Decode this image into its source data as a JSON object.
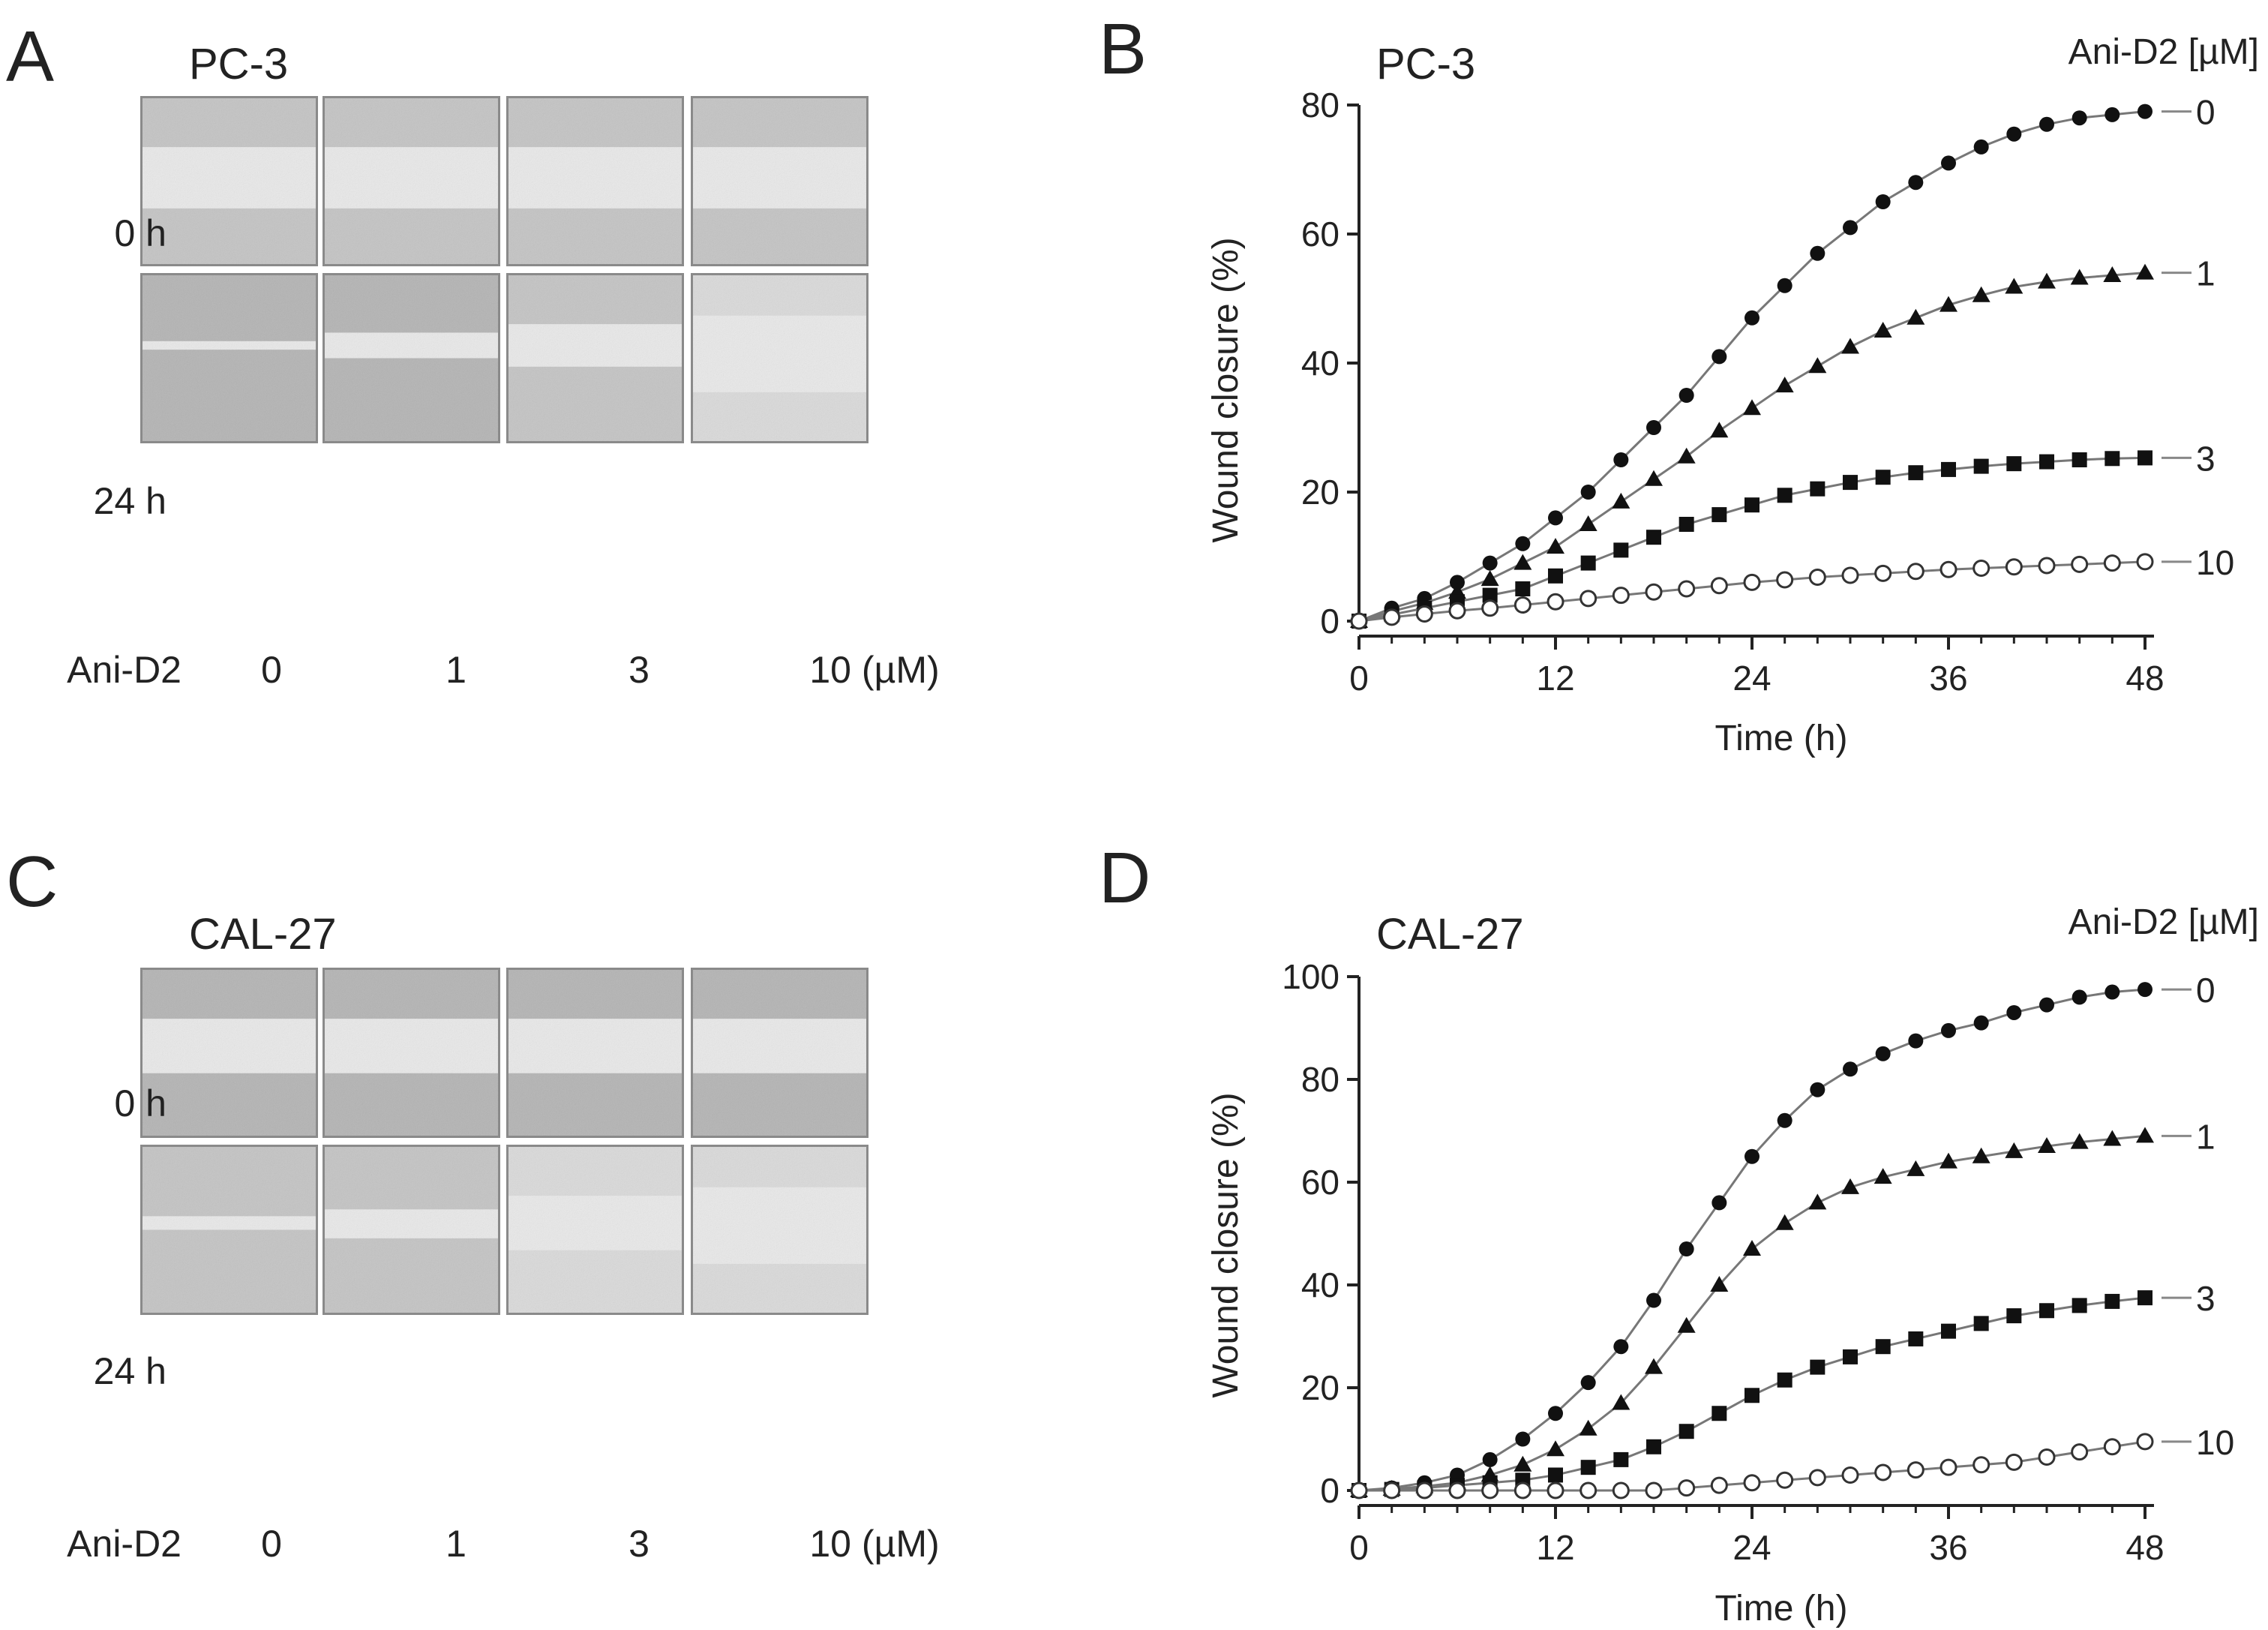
{
  "panels": {
    "A": {
      "letter": "A",
      "cell_line": "PC-3",
      "rows": [
        "0 h",
        "24 h"
      ],
      "treatment_label": "Ani-D2",
      "columns": [
        "0",
        "1",
        "3",
        "10 (µM)"
      ]
    },
    "C": {
      "letter": "C",
      "cell_line": "CAL-27",
      "rows": [
        "0 h",
        "24 h"
      ],
      "treatment_label": "Ani-D2",
      "columns": [
        "0",
        "1",
        "3",
        "10 (µM)"
      ]
    }
  },
  "chart_data": [
    {
      "type": "line",
      "panel": "B",
      "letter": "B",
      "title": "PC-3",
      "legend_title": "Ani-D2 [µM]",
      "xlabel": "Time (h)",
      "ylabel": "Wound closure (%)",
      "xlim": [
        0,
        48
      ],
      "ylim": [
        0,
        80
      ],
      "xticks": [
        0,
        12,
        24,
        36,
        48
      ],
      "yticks": [
        0,
        20,
        40,
        60,
        80
      ],
      "x": [
        0,
        2,
        4,
        6,
        8,
        10,
        12,
        14,
        16,
        18,
        20,
        22,
        24,
        26,
        28,
        30,
        32,
        34,
        36,
        38,
        40,
        42,
        44,
        46,
        48
      ],
      "series": [
        {
          "name": "0",
          "marker": "filled-circle",
          "values": [
            0,
            2,
            3.5,
            6,
            9,
            12,
            16,
            20,
            25,
            30,
            35,
            41,
            47,
            52,
            57,
            61,
            65,
            68,
            71,
            73.5,
            75.5,
            77,
            78,
            78.5,
            79
          ]
        },
        {
          "name": "1",
          "marker": "filled-triangle",
          "values": [
            0,
            1.5,
            2.8,
            4.5,
            6.5,
            9,
            11.5,
            15,
            18.5,
            22,
            25.5,
            29.5,
            33,
            36.5,
            39.5,
            42.5,
            45,
            47,
            49,
            50.5,
            51.8,
            52.6,
            53.2,
            53.6,
            54
          ]
        },
        {
          "name": "3",
          "marker": "filled-square",
          "values": [
            0,
            1,
            2,
            3,
            4,
            5,
            7,
            9,
            11,
            13,
            15,
            16.5,
            18,
            19.5,
            20.5,
            21.5,
            22.3,
            23,
            23.5,
            24,
            24.4,
            24.7,
            25,
            25.2,
            25.3
          ]
        },
        {
          "name": "10",
          "marker": "open-circle",
          "values": [
            0,
            0.6,
            1.1,
            1.6,
            2,
            2.5,
            3,
            3.5,
            4,
            4.5,
            5,
            5.5,
            6,
            6.4,
            6.8,
            7.1,
            7.4,
            7.7,
            8,
            8.2,
            8.4,
            8.6,
            8.8,
            9,
            9.2
          ]
        }
      ]
    },
    {
      "type": "line",
      "panel": "D",
      "letter": "D",
      "title": "CAL-27",
      "legend_title": "Ani-D2 [µM]",
      "xlabel": "Time (h)",
      "ylabel": "Wound closure (%)",
      "xlim": [
        0,
        48
      ],
      "ylim": [
        0,
        100
      ],
      "xticks": [
        0,
        12,
        24,
        36,
        48
      ],
      "yticks": [
        0,
        20,
        40,
        60,
        80,
        100
      ],
      "x": [
        0,
        2,
        4,
        6,
        8,
        10,
        12,
        14,
        16,
        18,
        20,
        22,
        24,
        26,
        28,
        30,
        32,
        34,
        36,
        38,
        40,
        42,
        44,
        46,
        48
      ],
      "series": [
        {
          "name": "0",
          "marker": "filled-circle",
          "values": [
            0,
            0.5,
            1.5,
            3,
            6,
            10,
            15,
            21,
            28,
            37,
            47,
            56,
            65,
            72,
            78,
            82,
            85,
            87.5,
            89.5,
            91,
            93,
            94.5,
            96,
            97,
            97.5
          ]
        },
        {
          "name": "1",
          "marker": "filled-triangle",
          "values": [
            0,
            0.3,
            0.8,
            1.5,
            3,
            5,
            8,
            12,
            17,
            24,
            32,
            40,
            47,
            52,
            56,
            59,
            61,
            62.5,
            64,
            65,
            66,
            67,
            67.8,
            68.4,
            69
          ]
        },
        {
          "name": "3",
          "marker": "filled-square",
          "values": [
            0,
            0.2,
            0.5,
            1,
            1.5,
            2,
            3,
            4.5,
            6,
            8.5,
            11.5,
            15,
            18.5,
            21.5,
            24,
            26,
            28,
            29.5,
            31,
            32.5,
            34,
            35,
            36,
            36.8,
            37.5
          ]
        },
        {
          "name": "10",
          "marker": "open-circle",
          "values": [
            0,
            0,
            0,
            0,
            0,
            0,
            0,
            0,
            0,
            0,
            0.5,
            1,
            1.5,
            2,
            2.5,
            3,
            3.5,
            4,
            4.5,
            5,
            5.5,
            6.5,
            7.5,
            8.5,
            9.5
          ]
        }
      ]
    }
  ]
}
